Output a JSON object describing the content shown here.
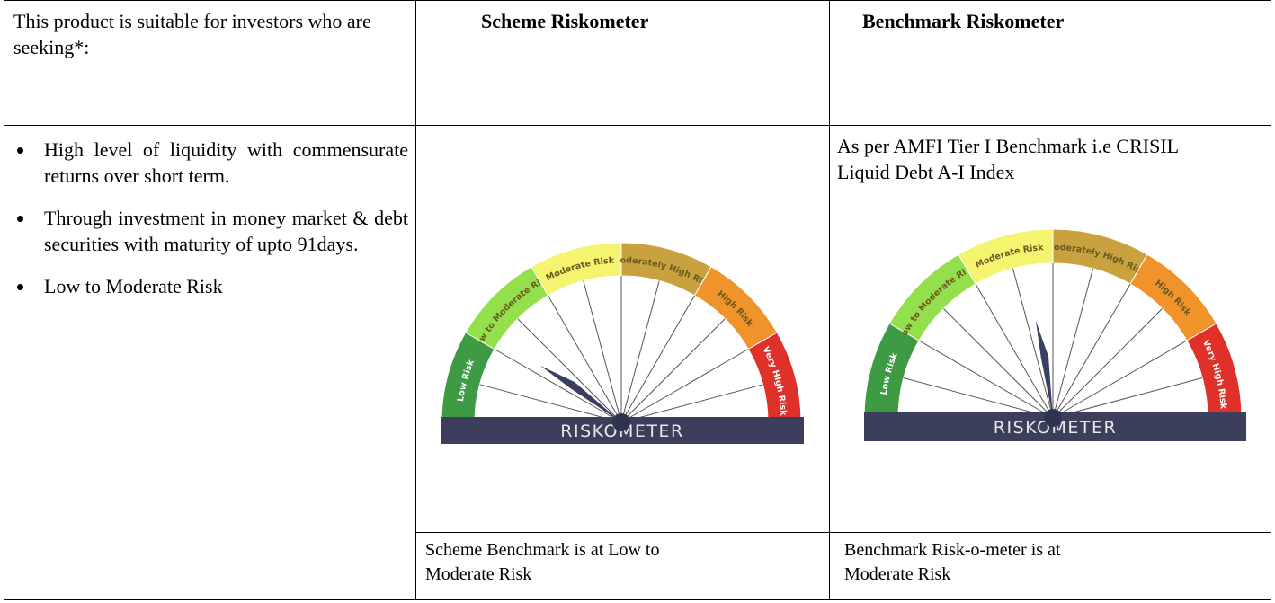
{
  "table": {
    "header": [
      "This product is suitable for investors who are seeking*:",
      "Scheme Riskometer",
      "Benchmark Riskometer"
    ],
    "objectives": [
      "High level of liquidity with commensurate returns over short term.",
      "Through investment in money market & debt securities with maturity of upto 91days.",
      "Low to Moderate Risk"
    ],
    "benchmark_note": "As per AMFI Tier I Benchmark i.e CRISIL Liquid Debt A-I Index",
    "footer": [
      "Scheme Benchmark is at Low to Moderate Risk",
      "Benchmark Risk-o-meter is at Moderate Risk"
    ]
  },
  "riskometer": {
    "levels": [
      "Low Risk",
      "Low to Moderate Risk",
      "Moderate Risk",
      "Moderately High Risk",
      "High Risk",
      "Very High Risk"
    ],
    "label": "RISKOMETER"
  }
}
